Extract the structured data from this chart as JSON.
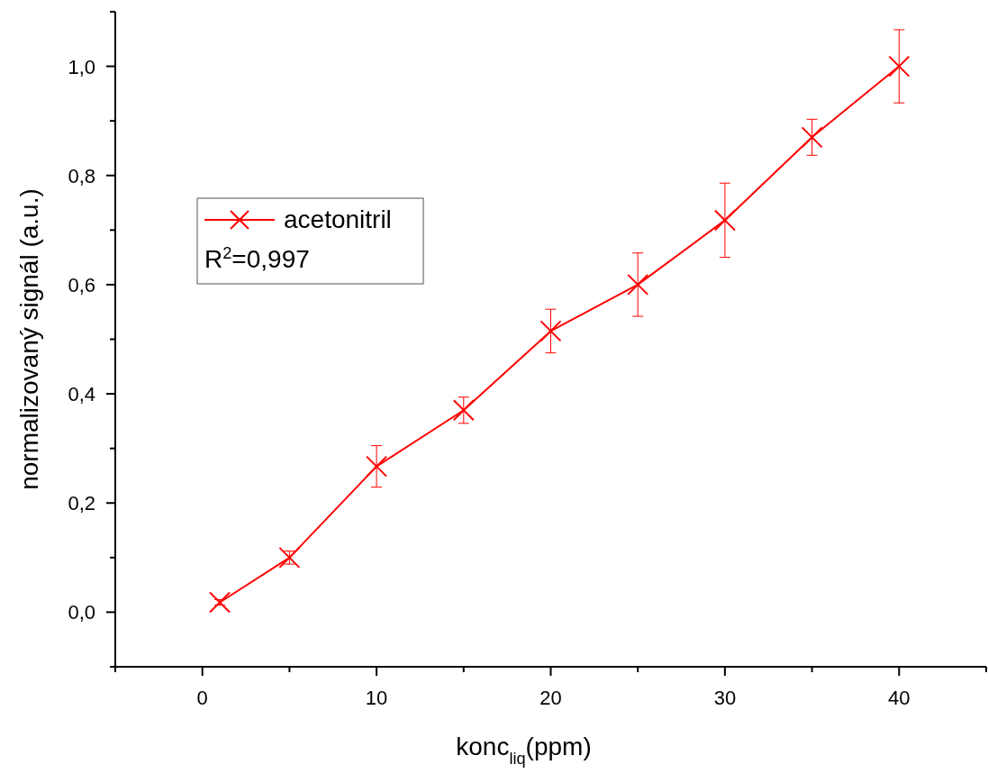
{
  "chart_data": {
    "type": "line",
    "xlabel": "konc$_{liq}$(ppm)",
    "ylabel": "normalizovaný signál (a.u.)",
    "x": [
      1,
      5,
      10,
      15,
      20,
      25,
      30,
      35,
      40
    ],
    "series": [
      {
        "name": "acetonitril",
        "color": "#ff0000",
        "values": [
          0.018,
          0.1,
          0.267,
          0.37,
          0.515,
          0.6,
          0.718,
          0.87,
          1.0
        ],
        "errors": [
          0.005,
          0.012,
          0.038,
          0.024,
          0.04,
          0.058,
          0.068,
          0.033,
          0.067
        ]
      }
    ],
    "xlim": [
      -5,
      45
    ],
    "xticks": [
      {
        "value": -5,
        "label": null
      },
      0,
      {
        "value": 5,
        "label": null
      },
      10,
      {
        "value": 15,
        "label": null
      },
      20,
      {
        "value": 25,
        "label": null
      },
      30,
      {
        "value": 35,
        "label": null
      },
      40,
      {
        "value": 45,
        "label": null
      }
    ],
    "ylim": [
      -0.1,
      1.1
    ],
    "yticks": [
      {
        "value": -0.1,
        "label": null
      },
      {
        "value": 0,
        "label": "0,0"
      },
      {
        "value": 0.1,
        "label": null
      },
      {
        "value": 0.2,
        "label": "0,2"
      },
      {
        "value": 0.3,
        "label": null
      },
      {
        "value": 0.4,
        "label": "0,4"
      },
      {
        "value": 0.5,
        "label": null
      },
      {
        "value": 0.6,
        "label": "0,6"
      },
      {
        "value": 0.7,
        "label": null
      },
      {
        "value": 0.8,
        "label": "0,8"
      },
      {
        "value": 0.9,
        "label": null
      },
      {
        "value": 1.0,
        "label": "1,0"
      },
      {
        "value": 1.1,
        "label": null
      }
    ],
    "marker": "cross",
    "line_style": "solid",
    "legend": "top left",
    "grid": false,
    "annotations": [
      "R$^{2}$=0,997"
    ]
  }
}
